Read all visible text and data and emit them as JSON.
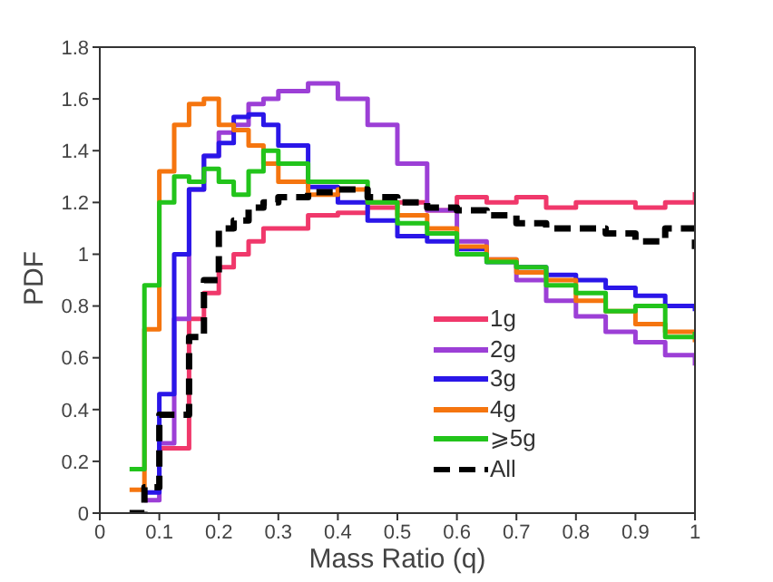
{
  "chart_data": {
    "type": "step",
    "xlabel": "Mass Ratio (q)",
    "ylabel": "PDF",
    "x": [
      0.05,
      0.075,
      0.1,
      0.125,
      0.15,
      0.175,
      0.2,
      0.225,
      0.25,
      0.275,
      0.3,
      0.35,
      0.4,
      0.45,
      0.5,
      0.55,
      0.6,
      0.65,
      0.7,
      0.75,
      0.8,
      0.85,
      0.9,
      0.95,
      1.0
    ],
    "series": [
      {
        "name": "1g",
        "color": "#f0386b",
        "values": [
          null,
          null,
          0.25,
          0.25,
          0.75,
          0.85,
          0.95,
          1.0,
          1.05,
          1.1,
          1.1,
          1.15,
          1.16,
          1.18,
          1.2,
          1.17,
          1.22,
          1.2,
          1.22,
          1.18,
          1.2,
          1.2,
          1.18,
          1.2,
          1.24
        ]
      },
      {
        "name": "2g",
        "color": "#9c3fd6",
        "values": [
          null,
          0.05,
          0.27,
          0.75,
          1.25,
          1.38,
          1.47,
          1.5,
          1.58,
          1.6,
          1.63,
          1.66,
          1.6,
          1.5,
          1.35,
          1.17,
          1.05,
          0.98,
          0.9,
          0.82,
          0.76,
          0.7,
          0.66,
          0.61,
          0.57
        ]
      },
      {
        "name": "3g",
        "color": "#2a16e8",
        "values": [
          null,
          0.08,
          0.46,
          1.0,
          1.25,
          1.38,
          1.43,
          1.53,
          1.54,
          1.5,
          1.42,
          1.26,
          1.2,
          1.13,
          1.07,
          1.05,
          1.02,
          0.97,
          0.95,
          0.92,
          0.9,
          0.87,
          0.84,
          0.8,
          0.78
        ]
      },
      {
        "name": "4g",
        "color": "#f5750f",
        "values": [
          0.09,
          0.71,
          1.32,
          1.5,
          1.58,
          1.6,
          1.5,
          1.48,
          1.42,
          1.35,
          1.28,
          1.23,
          1.25,
          1.2,
          1.15,
          1.1,
          1.03,
          0.98,
          0.93,
          0.9,
          0.82,
          0.78,
          0.73,
          0.7,
          0.66
        ]
      },
      {
        "name": "⩾5g",
        "color": "#22c41b",
        "values": [
          0.17,
          0.88,
          1.2,
          1.3,
          1.28,
          1.33,
          1.28,
          1.23,
          1.32,
          1.4,
          1.35,
          1.28,
          1.28,
          1.2,
          1.12,
          1.08,
          1.0,
          0.97,
          0.95,
          0.88,
          0.85,
          0.78,
          0.8,
          0.68,
          0.7
        ]
      },
      {
        "name": "All",
        "color": "#000000",
        "line_style": "dashed",
        "values": [
          0.0,
          0.1,
          0.38,
          0.38,
          0.68,
          0.9,
          1.1,
          1.13,
          1.18,
          1.2,
          1.22,
          1.24,
          1.25,
          1.22,
          1.2,
          1.18,
          1.17,
          1.15,
          1.12,
          1.1,
          1.1,
          1.08,
          1.05,
          1.1,
          1.02
        ]
      }
    ],
    "xlim": [
      0,
      1
    ],
    "xticks": [
      0,
      0.1,
      0.2,
      0.3,
      0.4,
      0.5,
      0.6,
      0.7,
      0.8,
      0.9,
      1
    ],
    "ylim": [
      0,
      1.8
    ],
    "yticks": [
      0,
      0.2,
      0.4,
      0.6,
      0.8,
      1,
      1.2,
      1.4,
      1.6,
      1.8
    ],
    "legend": "right",
    "grid": false
  }
}
